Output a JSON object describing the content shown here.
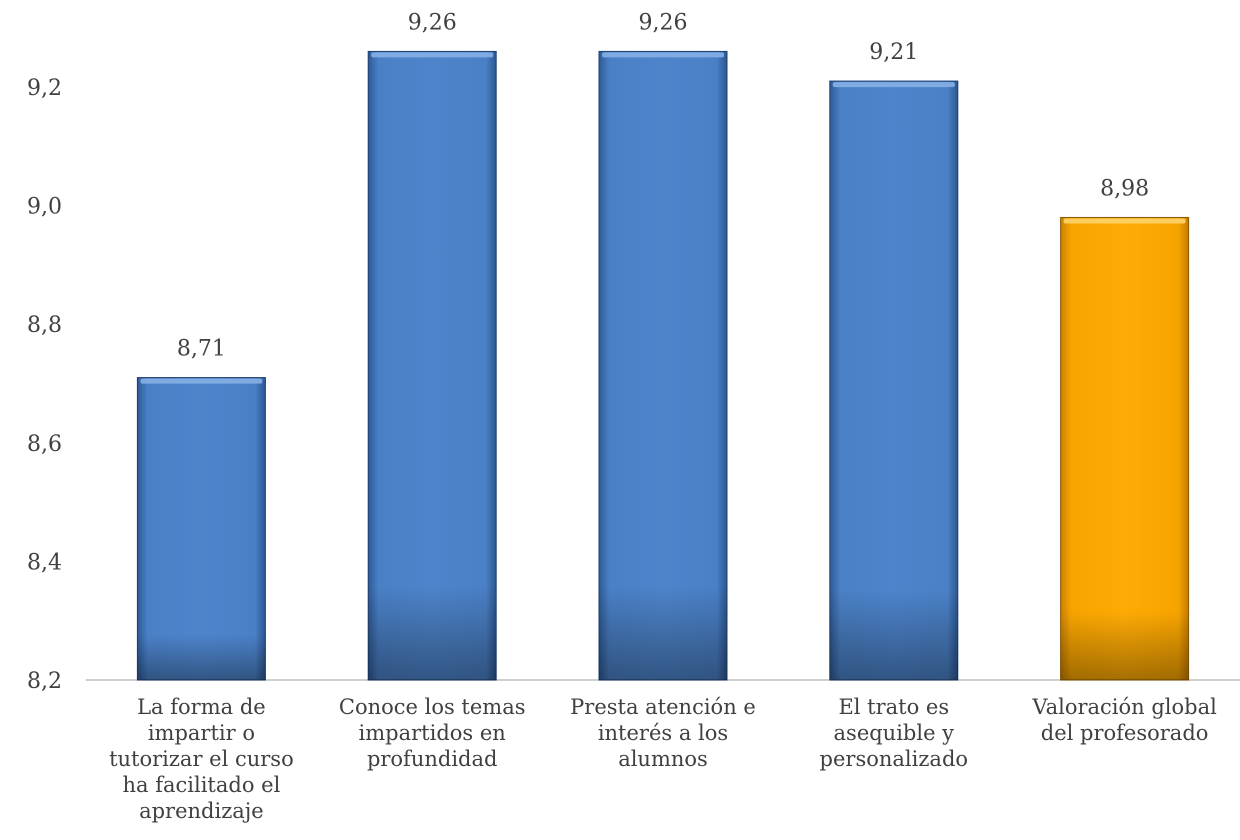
{
  "chart_data": {
    "type": "bar",
    "title": "",
    "xlabel": "",
    "ylabel": "",
    "ylim": [
      8.2,
      9.3
    ],
    "yticks": [
      "8,2",
      "8,4",
      "8,6",
      "8,8",
      "9,0",
      "9,2"
    ],
    "ytick_values": [
      8.2,
      8.4,
      8.6,
      8.8,
      9.0,
      9.2
    ],
    "grid": false,
    "legend": "none",
    "categories": [
      "La forma de impartir o tutorizar el curso ha facilitado el aprendizaje",
      "Conoce los temas impartidos en profundidad",
      "Presta atención e interés a los alumnos",
      "El trato es asequible y personalizado",
      "Valoración global del profesorado"
    ],
    "category_lines": [
      [
        "La forma de",
        "impartir o",
        "tutorizar el curso",
        "ha facilitado el",
        "aprendizaje"
      ],
      [
        "Conoce los temas",
        "impartidos en",
        "profundidad"
      ],
      [
        "Presta atención e",
        "interés a los",
        "alumnos"
      ],
      [
        "El trato es",
        "asequible y",
        "personalizado"
      ],
      [
        "Valoración global",
        "del profesorado"
      ]
    ],
    "values": [
      8.71,
      9.26,
      9.26,
      9.21,
      8.98
    ],
    "data_labels": [
      "8,71",
      "9,26",
      "9,26",
      "9,21",
      "8,98"
    ],
    "bar_colors": [
      "#4a7fc4",
      "#4a7fc4",
      "#4a7fc4",
      "#4a7fc4",
      "#f5a000"
    ]
  }
}
